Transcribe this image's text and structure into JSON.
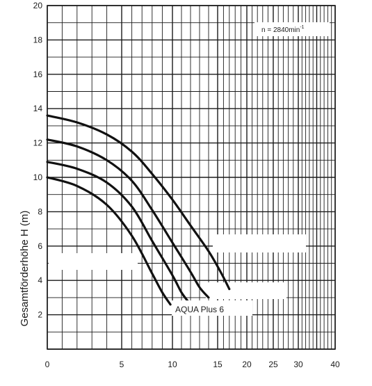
{
  "chart_data": {
    "type": "line",
    "title": "",
    "xlabel": "",
    "ylabel": "Gesamtförderhöhe  H (m)",
    "annotation_speed": "n = 2840min",
    "annotation_speed_exp": "-1",
    "annotation_model": "AQUA  Plus 6",
    "x_ticks": [
      {
        "value": 0,
        "label": "0"
      },
      {
        "value": 5,
        "label": "5"
      },
      {
        "value": 10,
        "label": "10"
      },
      {
        "value": 15,
        "label": "15"
      },
      {
        "value": 20,
        "label": "20"
      },
      {
        "value": 25,
        "label": "25"
      },
      {
        "value": 30,
        "label": "30"
      },
      {
        "value": 40,
        "label": "40"
      }
    ],
    "y_ticks": [
      {
        "value": 2,
        "label": "2"
      },
      {
        "value": 4,
        "label": "4"
      },
      {
        "value": 6,
        "label": "6"
      },
      {
        "value": 8,
        "label": "8"
      },
      {
        "value": 10,
        "label": "10"
      },
      {
        "value": 12,
        "label": "12"
      },
      {
        "value": 14,
        "label": "14"
      },
      {
        "value": 16,
        "label": "16"
      },
      {
        "value": 18,
        "label": "18"
      },
      {
        "value": 20,
        "label": "20"
      }
    ],
    "ylim": [
      0,
      20
    ],
    "grid": true,
    "series": [
      {
        "values": [
          [
            0,
            10.0
          ],
          [
            2,
            9.5
          ],
          [
            4,
            8.4
          ],
          [
            6,
            6.6
          ],
          [
            8,
            4.4
          ],
          [
            9,
            3.3
          ],
          [
            9.8,
            2.6
          ]
        ]
      },
      {
        "values": [
          [
            0,
            10.9
          ],
          [
            2,
            10.5
          ],
          [
            4,
            9.7
          ],
          [
            6,
            8.3
          ],
          [
            8,
            6.3
          ],
          [
            10,
            4.3
          ],
          [
            11,
            3.3
          ],
          [
            12,
            2.6
          ]
        ]
      },
      {
        "values": [
          [
            0,
            12.2
          ],
          [
            2,
            11.8
          ],
          [
            4,
            11.0
          ],
          [
            6,
            9.8
          ],
          [
            8,
            8.1
          ],
          [
            10,
            6.2
          ],
          [
            12,
            4.5
          ],
          [
            13,
            3.6
          ],
          [
            14,
            3.0
          ]
        ]
      },
      {
        "values": [
          [
            0,
            13.6
          ],
          [
            2,
            13.2
          ],
          [
            4,
            12.5
          ],
          [
            6,
            11.5
          ],
          [
            8,
            10.2
          ],
          [
            10,
            8.7
          ],
          [
            12,
            7.2
          ],
          [
            14,
            5.7
          ],
          [
            15.5,
            4.5
          ],
          [
            17,
            3.5
          ]
        ]
      }
    ]
  }
}
